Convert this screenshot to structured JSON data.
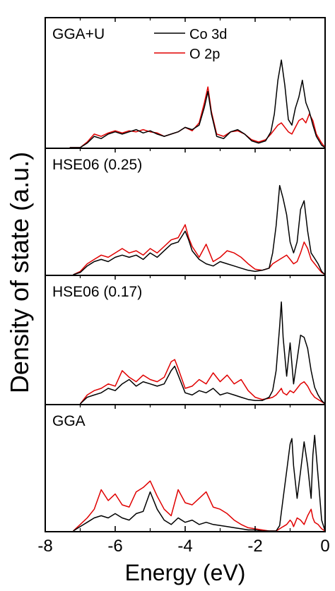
{
  "chart_data": {
    "type": "line",
    "xlabel": "Energy (eV)",
    "ylabel": "Density of state (a.u.)",
    "xlim": [
      -8,
      0
    ],
    "xticks": [
      -8,
      -6,
      -4,
      -2,
      0
    ],
    "xtick_labels": [
      "-8",
      "-6",
      "-4",
      "-2",
      "0"
    ],
    "legend": [
      {
        "name": "Co 3d",
        "color": "#000000"
      },
      {
        "name": "O 2p",
        "color": "#e00000"
      }
    ],
    "panels": [
      {
        "label": "GGA+U",
        "ylim": [
          0,
          1
        ],
        "series": [
          {
            "name": "Co 3d",
            "color": "#000000",
            "x": [
              -7.3,
              -7.0,
              -6.8,
              -6.6,
              -6.4,
              -6.2,
              -6.0,
              -5.8,
              -5.6,
              -5.4,
              -5.2,
              -5.0,
              -4.8,
              -4.6,
              -4.4,
              -4.2,
              -4.0,
              -3.8,
              -3.6,
              -3.45,
              -3.35,
              -3.25,
              -3.1,
              -2.9,
              -2.7,
              -2.5,
              -2.3,
              -2.1,
              -1.9,
              -1.7,
              -1.55,
              -1.45,
              -1.35,
              -1.25,
              -1.15,
              -1.05,
              -0.95,
              -0.85,
              -0.75,
              -0.65,
              -0.55,
              -0.45,
              -0.35,
              -0.25,
              -0.1,
              0
            ],
            "y": [
              0,
              0,
              0.04,
              0.1,
              0.08,
              0.12,
              0.14,
              0.12,
              0.14,
              0.16,
              0.13,
              0.15,
              0.12,
              0.1,
              0.12,
              0.14,
              0.18,
              0.16,
              0.2,
              0.36,
              0.5,
              0.3,
              0.1,
              0.08,
              0.14,
              0.16,
              0.12,
              0.06,
              0.04,
              0.06,
              0.14,
              0.3,
              0.6,
              0.78,
              0.55,
              0.25,
              0.2,
              0.35,
              0.45,
              0.6,
              0.4,
              0.32,
              0.2,
              0.1,
              0.02,
              0
            ]
          },
          {
            "name": "O 2p",
            "color": "#e00000",
            "x": [
              -7.3,
              -7.0,
              -6.8,
              -6.6,
              -6.4,
              -6.2,
              -6.0,
              -5.8,
              -5.6,
              -5.4,
              -5.2,
              -5.0,
              -4.8,
              -4.6,
              -4.4,
              -4.2,
              -4.0,
              -3.8,
              -3.6,
              -3.45,
              -3.35,
              -3.25,
              -3.1,
              -2.9,
              -2.7,
              -2.5,
              -2.3,
              -2.1,
              -1.9,
              -1.7,
              -1.55,
              -1.45,
              -1.35,
              -1.25,
              -1.15,
              -1.05,
              -0.95,
              -0.85,
              -0.75,
              -0.65,
              -0.55,
              -0.45,
              -0.35,
              -0.25,
              -0.1,
              0
            ],
            "y": [
              0,
              0,
              0.05,
              0.12,
              0.1,
              0.13,
              0.15,
              0.13,
              0.15,
              0.14,
              0.16,
              0.14,
              0.13,
              0.1,
              0.12,
              0.14,
              0.18,
              0.15,
              0.22,
              0.4,
              0.54,
              0.32,
              0.12,
              0.1,
              0.14,
              0.15,
              0.12,
              0.07,
              0.05,
              0.07,
              0.12,
              0.16,
              0.2,
              0.22,
              0.18,
              0.14,
              0.12,
              0.18,
              0.24,
              0.26,
              0.22,
              0.3,
              0.24,
              0.12,
              0.04,
              0
            ]
          }
        ]
      },
      {
        "label": "HSE06 (0.25)",
        "ylim": [
          0,
          1
        ],
        "series": [
          {
            "name": "Co 3d",
            "color": "#000000",
            "x": [
              -7.2,
              -7.0,
              -6.8,
              -6.6,
              -6.4,
              -6.2,
              -6.0,
              -5.8,
              -5.6,
              -5.4,
              -5.2,
              -5.0,
              -4.8,
              -4.6,
              -4.4,
              -4.2,
              -4.0,
              -3.9,
              -3.8,
              -3.6,
              -3.4,
              -3.2,
              -3.0,
              -2.8,
              -2.6,
              -2.4,
              -2.2,
              -2.0,
              -1.8,
              -1.6,
              -1.5,
              -1.4,
              -1.3,
              -1.2,
              -1.1,
              -1.0,
              -0.9,
              -0.8,
              -0.7,
              -0.6,
              -0.5,
              -0.4,
              -0.3,
              -0.2,
              -0.1,
              0
            ],
            "y": [
              0,
              0.02,
              0.08,
              0.12,
              0.14,
              0.12,
              0.16,
              0.18,
              0.16,
              0.18,
              0.14,
              0.2,
              0.16,
              0.22,
              0.28,
              0.3,
              0.4,
              0.32,
              0.22,
              0.14,
              0.1,
              0.08,
              0.12,
              0.1,
              0.08,
              0.06,
              0.04,
              0.03,
              0.04,
              0.06,
              0.2,
              0.45,
              0.82,
              0.7,
              0.55,
              0.3,
              0.2,
              0.3,
              0.6,
              0.68,
              0.4,
              0.2,
              0.15,
              0.1,
              0.03,
              0
            ]
          },
          {
            "name": "O 2p",
            "color": "#e00000",
            "x": [
              -7.2,
              -7.0,
              -6.8,
              -6.6,
              -6.4,
              -6.2,
              -6.0,
              -5.8,
              -5.6,
              -5.4,
              -5.2,
              -5.0,
              -4.8,
              -4.6,
              -4.4,
              -4.2,
              -4.0,
              -3.9,
              -3.8,
              -3.6,
              -3.4,
              -3.2,
              -3.0,
              -2.8,
              -2.6,
              -2.4,
              -2.2,
              -2.0,
              -1.8,
              -1.6,
              -1.5,
              -1.4,
              -1.3,
              -1.2,
              -1.1,
              -1.0,
              -0.9,
              -0.8,
              -0.7,
              -0.6,
              -0.5,
              -0.4,
              -0.3,
              -0.2,
              -0.1,
              0
            ],
            "y": [
              0,
              0.03,
              0.1,
              0.14,
              0.18,
              0.16,
              0.2,
              0.24,
              0.2,
              0.22,
              0.18,
              0.24,
              0.2,
              0.26,
              0.32,
              0.34,
              0.46,
              0.34,
              0.26,
              0.16,
              0.28,
              0.12,
              0.16,
              0.22,
              0.2,
              0.16,
              0.1,
              0.05,
              0.04,
              0.06,
              0.1,
              0.12,
              0.14,
              0.16,
              0.18,
              0.14,
              0.1,
              0.12,
              0.2,
              0.3,
              0.24,
              0.14,
              0.1,
              0.06,
              0.02,
              0
            ]
          }
        ]
      },
      {
        "label": "HSE06 (0.17)",
        "ylim": [
          0,
          1
        ],
        "series": [
          {
            "name": "Co 3d",
            "color": "#000000",
            "x": [
              -7.0,
              -6.8,
              -6.6,
              -6.4,
              -6.2,
              -6.0,
              -5.8,
              -5.6,
              -5.4,
              -5.2,
              -5.0,
              -4.8,
              -4.6,
              -4.4,
              -4.3,
              -4.2,
              -4.0,
              -3.8,
              -3.6,
              -3.4,
              -3.2,
              -3.0,
              -2.8,
              -2.6,
              -2.4,
              -2.2,
              -2.0,
              -1.8,
              -1.6,
              -1.5,
              -1.4,
              -1.3,
              -1.25,
              -1.2,
              -1.1,
              -1.0,
              -0.9,
              -0.8,
              -0.7,
              -0.6,
              -0.5,
              -0.4,
              -0.3,
              -0.2,
              -0.1,
              0
            ],
            "y": [
              0,
              0.06,
              0.08,
              0.1,
              0.14,
              0.12,
              0.18,
              0.22,
              0.16,
              0.2,
              0.18,
              0.16,
              0.18,
              0.3,
              0.34,
              0.26,
              0.1,
              0.08,
              0.12,
              0.1,
              0.14,
              0.08,
              0.1,
              0.08,
              0.06,
              0.04,
              0.03,
              0.03,
              0.06,
              0.12,
              0.3,
              0.7,
              0.92,
              0.6,
              0.25,
              0.55,
              0.18,
              0.4,
              0.62,
              0.6,
              0.5,
              0.3,
              0.15,
              0.08,
              0.03,
              0
            ]
          },
          {
            "name": "O 2p",
            "color": "#e00000",
            "x": [
              -7.0,
              -6.8,
              -6.6,
              -6.4,
              -6.2,
              -6.0,
              -5.8,
              -5.6,
              -5.4,
              -5.2,
              -5.0,
              -4.8,
              -4.6,
              -4.4,
              -4.3,
              -4.2,
              -4.0,
              -3.8,
              -3.6,
              -3.4,
              -3.2,
              -3.0,
              -2.8,
              -2.6,
              -2.4,
              -2.2,
              -2.0,
              -1.8,
              -1.6,
              -1.5,
              -1.4,
              -1.3,
              -1.25,
              -1.2,
              -1.1,
              -1.0,
              -0.9,
              -0.8,
              -0.7,
              -0.6,
              -0.5,
              -0.4,
              -0.3,
              -0.2,
              -0.1,
              0
            ],
            "y": [
              0,
              0.08,
              0.12,
              0.14,
              0.18,
              0.16,
              0.3,
              0.24,
              0.2,
              0.26,
              0.22,
              0.2,
              0.24,
              0.38,
              0.4,
              0.32,
              0.14,
              0.16,
              0.22,
              0.18,
              0.28,
              0.2,
              0.26,
              0.18,
              0.22,
              0.12,
              0.06,
              0.04,
              0.05,
              0.06,
              0.08,
              0.12,
              0.14,
              0.1,
              0.08,
              0.12,
              0.1,
              0.14,
              0.18,
              0.2,
              0.16,
              0.1,
              0.06,
              0.04,
              0.02,
              0
            ]
          }
        ]
      },
      {
        "label": "GGA",
        "ylim": [
          0,
          1
        ],
        "series": [
          {
            "name": "Co 3d",
            "color": "#000000",
            "x": [
              -7.2,
              -7.0,
              -6.8,
              -6.6,
              -6.4,
              -6.2,
              -6.0,
              -5.8,
              -5.6,
              -5.4,
              -5.2,
              -5.0,
              -4.8,
              -4.6,
              -4.4,
              -4.2,
              -4.0,
              -3.8,
              -3.6,
              -3.4,
              -3.2,
              -3.0,
              -2.8,
              -2.6,
              -2.4,
              -2.2,
              -2.0,
              -1.8,
              -1.6,
              -1.4,
              -1.3,
              -1.2,
              -1.1,
              -1.0,
              -0.95,
              -0.9,
              -0.8,
              -0.7,
              -0.6,
              -0.5,
              -0.4,
              -0.35,
              -0.3,
              -0.2,
              -0.1,
              0
            ],
            "y": [
              0,
              0.04,
              0.08,
              0.12,
              0.14,
              0.12,
              0.16,
              0.12,
              0.1,
              0.16,
              0.18,
              0.36,
              0.2,
              0.1,
              0.06,
              0.12,
              0.08,
              0.1,
              0.06,
              0.08,
              0.06,
              0.05,
              0.04,
              0.03,
              0.02,
              0.01,
              0.01,
              0,
              0,
              0,
              0.05,
              0.3,
              0.55,
              0.8,
              0.85,
              0.6,
              0.3,
              0.55,
              0.82,
              0.6,
              0.3,
              0.7,
              0.88,
              0.5,
              0.1,
              0
            ]
          },
          {
            "name": "O 2p",
            "color": "#e00000",
            "x": [
              -7.2,
              -7.0,
              -6.8,
              -6.6,
              -6.4,
              -6.2,
              -6.0,
              -5.8,
              -5.6,
              -5.4,
              -5.2,
              -5.0,
              -4.8,
              -4.6,
              -4.4,
              -4.2,
              -4.0,
              -3.8,
              -3.6,
              -3.4,
              -3.2,
              -3.0,
              -2.8,
              -2.6,
              -2.4,
              -2.2,
              -2.0,
              -1.8,
              -1.6,
              -1.4,
              -1.3,
              -1.2,
              -1.1,
              -1.0,
              -0.95,
              -0.9,
              -0.8,
              -0.7,
              -0.6,
              -0.5,
              -0.4,
              -0.35,
              -0.3,
              -0.2,
              -0.1,
              0
            ],
            "y": [
              0,
              0.06,
              0.12,
              0.2,
              0.38,
              0.28,
              0.34,
              0.24,
              0.22,
              0.36,
              0.4,
              0.46,
              0.32,
              0.2,
              0.14,
              0.38,
              0.26,
              0.24,
              0.3,
              0.36,
              0.22,
              0.2,
              0.16,
              0.1,
              0.06,
              0.03,
              0.02,
              0.01,
              0,
              0,
              0.02,
              0.04,
              0.06,
              0.1,
              0.08,
              0.04,
              0.12,
              0.1,
              0.06,
              0.14,
              0.2,
              0.12,
              0.08,
              0.06,
              0.02,
              0
            ]
          }
        ]
      }
    ]
  }
}
